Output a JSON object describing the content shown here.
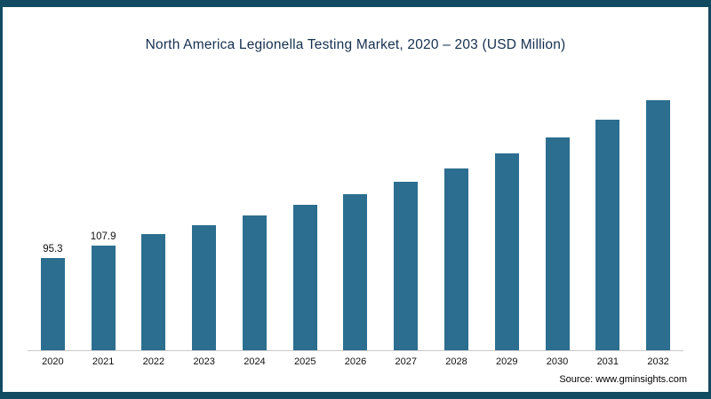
{
  "chart_data": {
    "type": "bar",
    "title": "North America Legionella Testing Market, 2020 – 203 (USD Million)",
    "categories": [
      "2020",
      "2021",
      "2022",
      "2023",
      "2024",
      "2025",
      "2026",
      "2027",
      "2028",
      "2029",
      "2030",
      "2031",
      "2032"
    ],
    "values": [
      95.3,
      107.9,
      120,
      129,
      139,
      150,
      161,
      174,
      188,
      203,
      220,
      238,
      258
    ],
    "data_labels": [
      "95.3",
      "107.9",
      "",
      "",
      "",
      "",
      "",
      "",
      "",
      "",
      "",
      "",
      ""
    ],
    "xlabel": "",
    "ylabel": "",
    "ylim": [
      0,
      290
    ],
    "grid": false,
    "legend": "none",
    "bar_color": "#2b6e90",
    "frame_color": "#114b61",
    "source": "Source: www.gminsights.com"
  }
}
